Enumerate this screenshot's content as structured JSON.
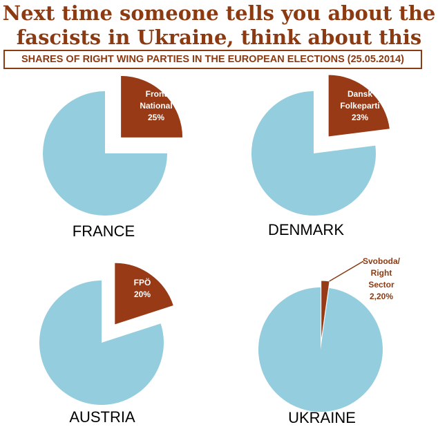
{
  "title_line1": "Next time someone tells you about the",
  "title_line2": "fascists in Ukraine, think about this",
  "subtitle": "SHARES OF RIGHT WING PARTIES IN THE EUROPEAN ELECTIONS (25.05.2014)",
  "colors": {
    "accent": "#8b3a12",
    "highlight_slice": "#973a15",
    "rest_slice": "#94cddd"
  },
  "chart_data": [
    {
      "type": "pie",
      "country": "FRANCE",
      "slices": [
        {
          "label_lines": [
            "Front",
            "National",
            "25%"
          ],
          "value": 25,
          "highlight": true
        },
        {
          "label_lines": [],
          "value": 75,
          "highlight": false
        }
      ]
    },
    {
      "type": "pie",
      "country": "DENMARK",
      "slices": [
        {
          "label_lines": [
            "Dansk",
            "Folkeparti",
            "23%"
          ],
          "value": 23,
          "highlight": true
        },
        {
          "label_lines": [],
          "value": 77,
          "highlight": false
        }
      ]
    },
    {
      "type": "pie",
      "country": "AUSTRIA",
      "slices": [
        {
          "label_lines": [
            "FPÖ",
            "20%"
          ],
          "value": 20,
          "highlight": true
        },
        {
          "label_lines": [],
          "value": 80,
          "highlight": false
        }
      ]
    },
    {
      "type": "pie",
      "country": "UKRAINE",
      "slices": [
        {
          "label_lines": [
            "Svoboda/",
            "Right",
            "Sector",
            "2,20%"
          ],
          "value": 2.2,
          "highlight": true
        },
        {
          "label_lines": [],
          "value": 97.8,
          "highlight": false
        }
      ]
    }
  ]
}
